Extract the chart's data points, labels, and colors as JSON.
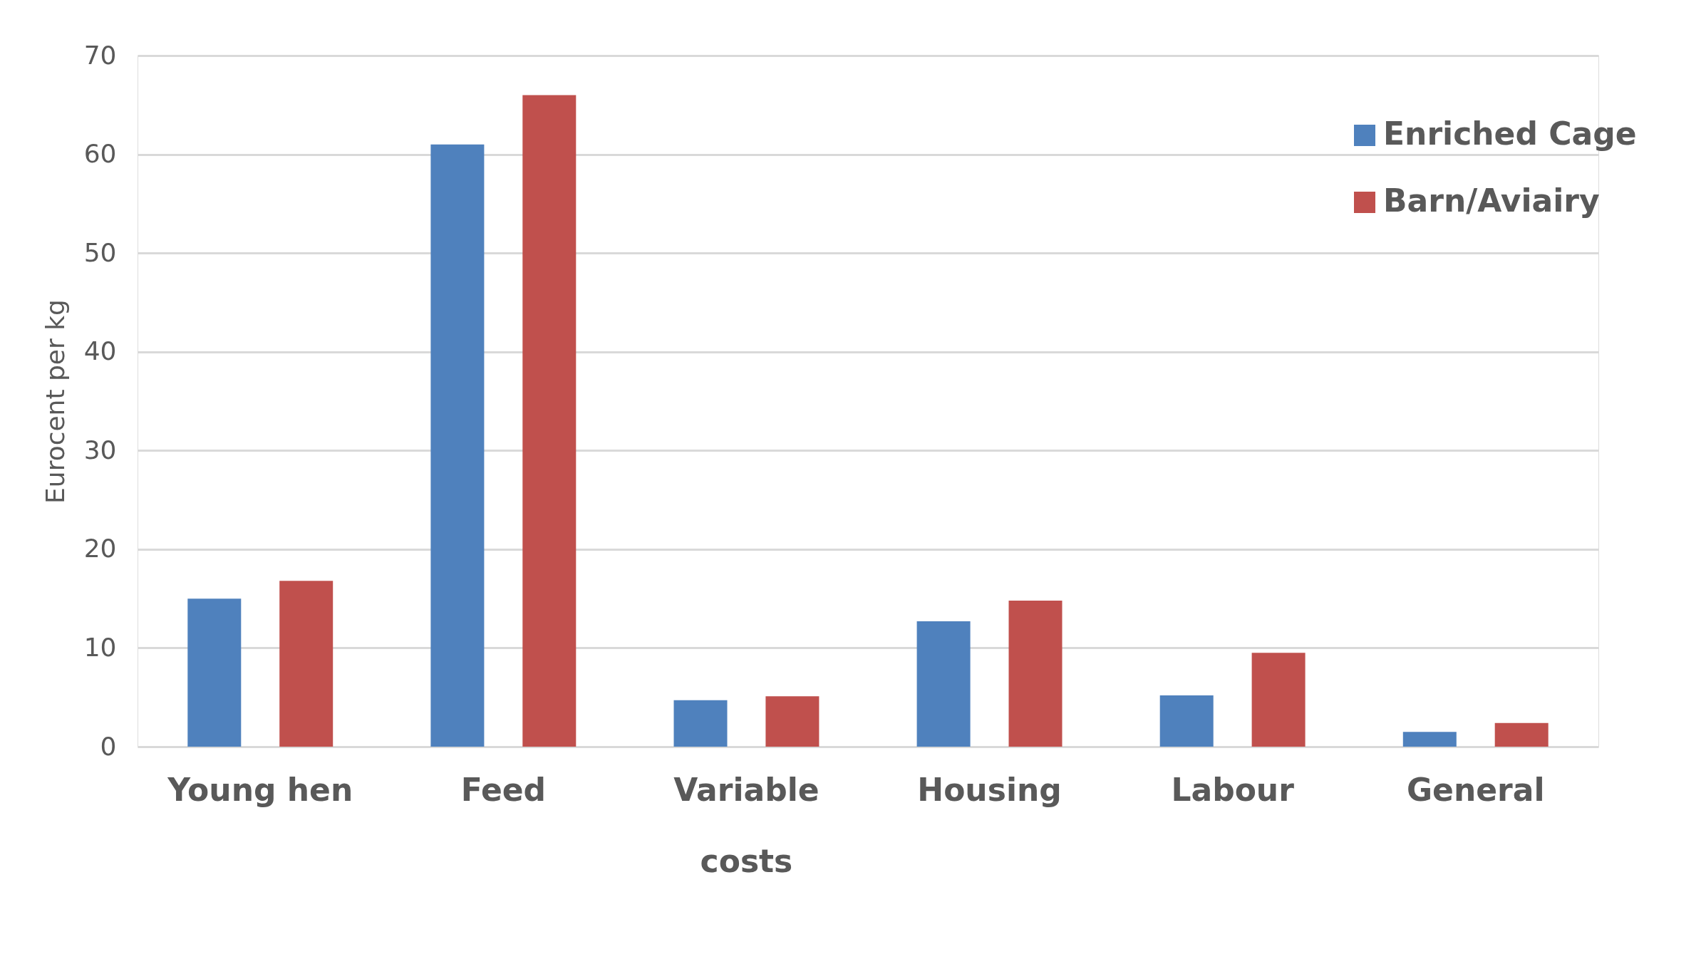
{
  "chart_data": {
    "type": "bar",
    "ylabel": "Eurocent per kg",
    "categories": [
      "Young hen",
      "Feed",
      "Variable costs",
      "Housing",
      "Labour",
      "General"
    ],
    "series": [
      {
        "name": "Enriched Cage",
        "color": "#4f81bd",
        "values": [
          15,
          61,
          4.7,
          12.7,
          5.2,
          1.5
        ]
      },
      {
        "name": "Barn/Aviairy",
        "color": "#c0504d",
        "values": [
          16.8,
          66,
          5.1,
          14.8,
          9.5,
          2.4
        ]
      }
    ],
    "ylim": [
      0,
      70
    ],
    "yticks": [
      0,
      10,
      20,
      30,
      40,
      50,
      60,
      70
    ],
    "grid": "y",
    "legend": "top right"
  }
}
